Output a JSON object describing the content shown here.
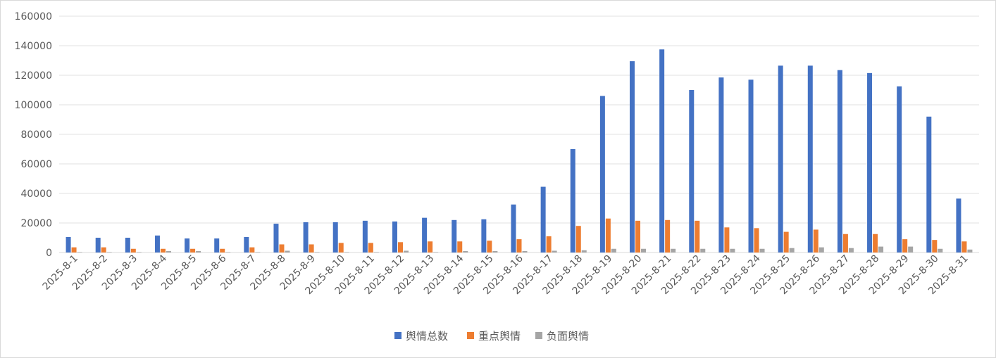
{
  "chart_data": {
    "type": "bar",
    "title": "",
    "xlabel": "",
    "ylabel": "",
    "ylim": [
      0,
      160000
    ],
    "yticks": [
      0,
      20000,
      40000,
      60000,
      80000,
      100000,
      120000,
      140000,
      160000
    ],
    "grid": true,
    "legend_position": "bottom",
    "categories": [
      "2025-8-1",
      "2025-8-2",
      "2025-8-3",
      "2025-8-4",
      "2025-8-5",
      "2025-8-6",
      "2025-8-7",
      "2025-8-8",
      "2025-8-9",
      "2025-8-10",
      "2025-8-11",
      "2025-8-12",
      "2025-8-13",
      "2025-8-14",
      "2025-8-15",
      "2025-8-16",
      "2025-8-17",
      "2025-8-18",
      "2025-8-19",
      "2025-8-20",
      "2025-8-21",
      "2025-8-22",
      "2025-8-23",
      "2025-8-24",
      "2025-8-25",
      "2025-8-26",
      "2025-8-27",
      "2025-8-28",
      "2025-8-29",
      "2025-8-30",
      "2025-8-31"
    ],
    "series": [
      {
        "name": "舆情总数",
        "color": "#4472c4",
        "values": [
          10500,
          10000,
          10000,
          11500,
          9500,
          9500,
          10500,
          19500,
          20500,
          20500,
          21500,
          21000,
          23500,
          22000,
          22500,
          32500,
          44500,
          70000,
          106000,
          129500,
          137500,
          110000,
          118500,
          117000,
          126500,
          126500,
          123500,
          121500,
          112500,
          92000,
          36500
        ]
      },
      {
        "name": "重点舆情",
        "color": "#ed7d31",
        "values": [
          3500,
          3500,
          2500,
          2500,
          2500,
          2500,
          3500,
          5500,
          5500,
          6500,
          6500,
          7000,
          7500,
          7500,
          8000,
          9000,
          11000,
          18000,
          23000,
          21500,
          22000,
          21500,
          17000,
          16500,
          14000,
          15500,
          12500,
          12500,
          9000,
          8500,
          7500
        ]
      },
      {
        "name": "负面舆情",
        "color": "#a5a5a5",
        "values": [
          300,
          300,
          300,
          1000,
          1000,
          300,
          300,
          1200,
          300,
          300,
          300,
          1200,
          300,
          1000,
          1000,
          1000,
          1200,
          1500,
          2500,
          2500,
          2500,
          2500,
          2500,
          2500,
          3000,
          3500,
          3000,
          4000,
          4000,
          2500,
          2000
        ]
      }
    ]
  }
}
